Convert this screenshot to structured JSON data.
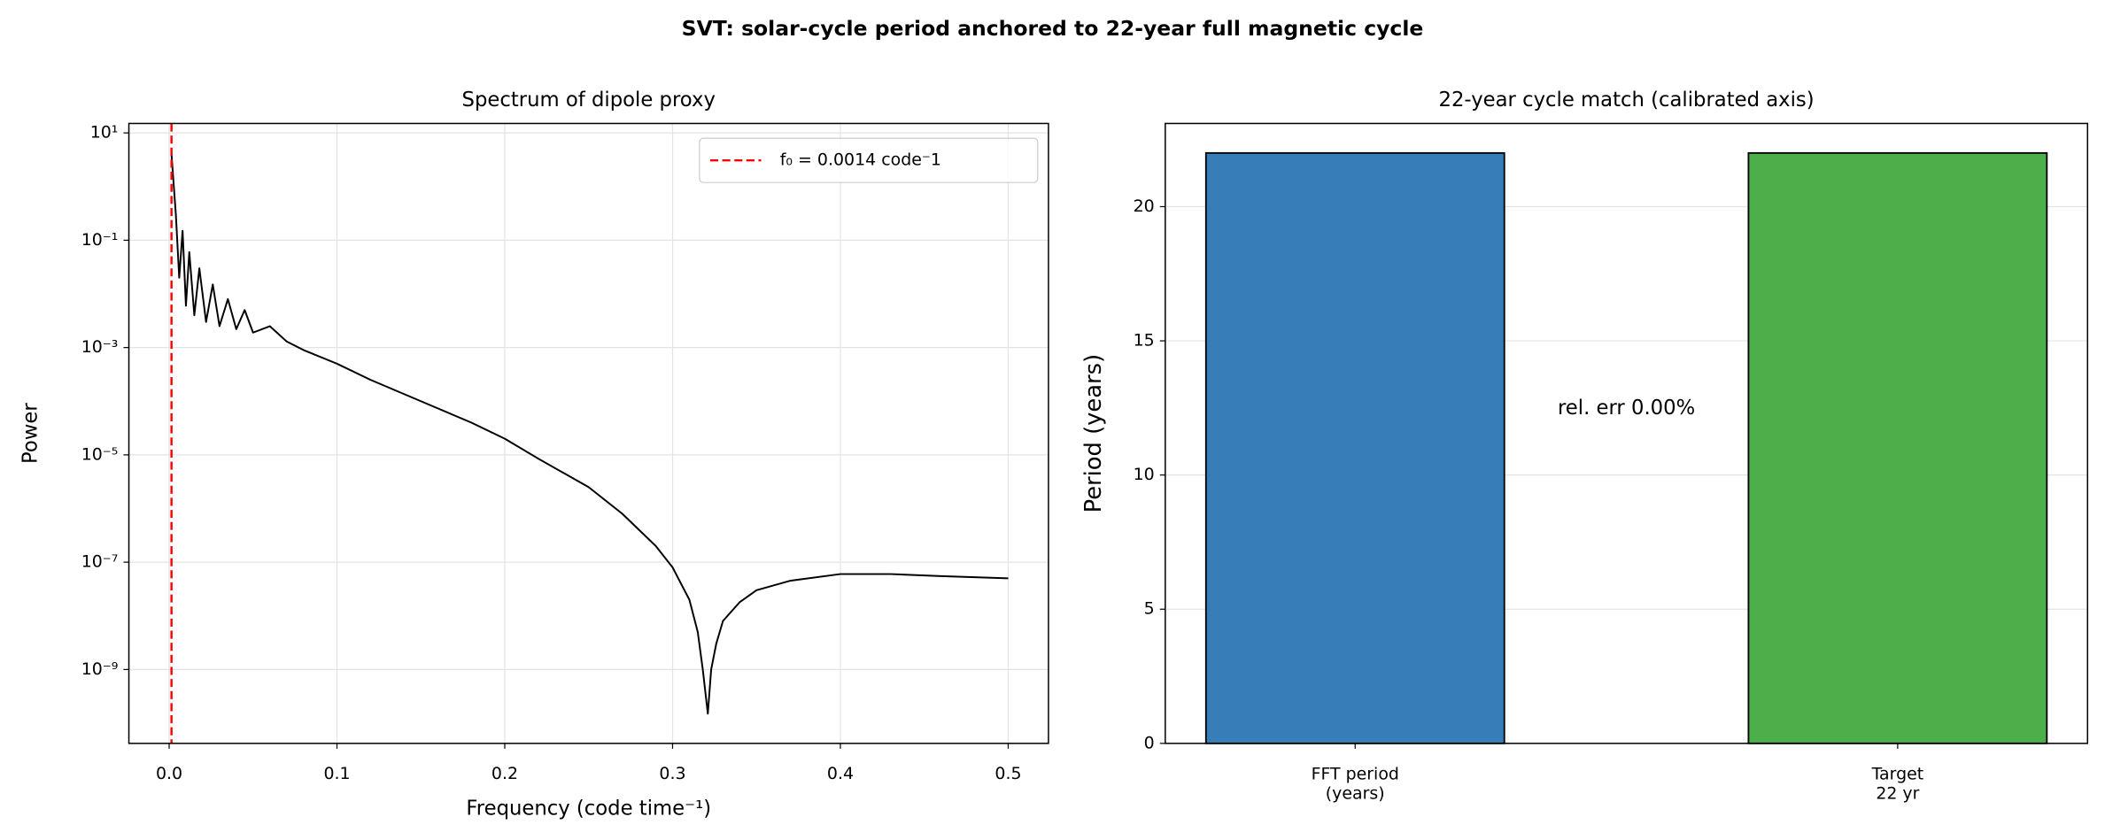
{
  "title": "SVT: solar-cycle period anchored to 22-year full magnetic cycle",
  "chart_data": [
    {
      "type": "line",
      "title": "Spectrum of dipole proxy",
      "xlabel": "Frequency (code time⁻¹)",
      "ylabel": "Power",
      "x": [
        0.0014,
        0.004,
        0.006,
        0.008,
        0.01,
        0.012,
        0.015,
        0.018,
        0.022,
        0.026,
        0.03,
        0.035,
        0.04,
        0.045,
        0.05,
        0.06,
        0.07,
        0.08,
        0.1,
        0.12,
        0.15,
        0.18,
        0.2,
        0.22,
        0.25,
        0.27,
        0.29,
        0.3,
        0.31,
        0.315,
        0.318,
        0.321,
        0.323,
        0.326,
        0.33,
        0.34,
        0.35,
        0.37,
        0.4,
        0.43,
        0.46,
        0.5
      ],
      "values": [
        4,
        0.3,
        0.02,
        0.15,
        0.006,
        0.06,
        0.004,
        0.03,
        0.003,
        0.015,
        0.0025,
        0.008,
        0.0022,
        0.005,
        0.0019,
        0.0025,
        0.0013,
        0.0009,
        0.0005,
        0.00025,
        0.0001,
        4e-05,
        2e-05,
        8.5e-06,
        2.5e-06,
        8e-07,
        2e-07,
        8e-08,
        2e-08,
        5e-09,
        1e-09,
        1.5e-10,
        1e-09,
        3e-09,
        8e-09,
        1.8e-08,
        3e-08,
        4.5e-08,
        6e-08,
        6e-08,
        5.5e-08,
        5e-08
      ],
      "color": "#000000",
      "xlim": [
        -0.024,
        0.524
      ],
      "xticks": [
        {
          "value": 0,
          "label": "0.0"
        },
        0.1,
        0.2,
        0.3,
        0.4,
        0.5
      ],
      "ylim": [
        4.2e-11,
        15
      ],
      "yscale": "log",
      "yticks": [
        {
          "value": 10,
          "label": "10¹"
        },
        {
          "value": 0.1,
          "label": "10⁻¹"
        },
        {
          "value": 0.001,
          "label": "10⁻³"
        },
        {
          "value": 1e-05,
          "label": "10⁻⁵"
        },
        {
          "value": 1e-07,
          "label": "10⁻⁷"
        },
        {
          "value": 1e-09,
          "label": "10⁻⁹"
        }
      ],
      "grid": true,
      "legend": "upper right",
      "vline": {
        "x": 0.0014,
        "label": "f₀ = 0.0014 code⁻1",
        "color": "#ff0000"
      }
    },
    {
      "type": "bar",
      "title": "22-year cycle match (calibrated axis)",
      "ylabel": "Period (years)",
      "categories": [
        "FFT period\n(years)",
        "Target\n22 yr"
      ],
      "values": [
        22,
        22
      ],
      "colors": [
        "#377eb8",
        "#4daf4a"
      ],
      "edgecolor": "#000000",
      "ylim": [
        0,
        23.1
      ],
      "yticks": [
        0,
        5,
        10,
        15,
        20
      ],
      "grid": true,
      "annotation": "rel. err 0.00%"
    }
  ]
}
